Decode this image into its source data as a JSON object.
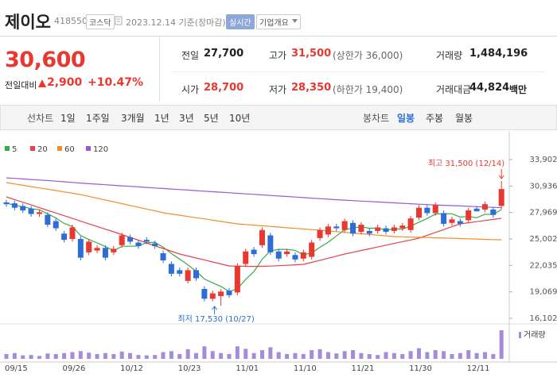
{
  "header": {
    "name": "제이오",
    "code": "418550",
    "market": "코스닥",
    "date": "2023.12.14 기준(장마감)",
    "realtime": "실시간",
    "company": "기업개요"
  },
  "quote": {
    "price": "30,600",
    "change_label": "전일대비",
    "change": "2,900",
    "change_rate": "+10.47%"
  },
  "stats": [
    [
      {
        "label": "전일",
        "value": "27,700"
      },
      {
        "label": "고가",
        "value": "31,500",
        "sub": "(상한가 36,000)"
      },
      {
        "label": "거래량",
        "value": "1,484,196"
      }
    ],
    [
      {
        "label": "시가",
        "value": "28,700"
      },
      {
        "label": "저가",
        "value": "28,350",
        "sub": "(하한가 19,400)"
      },
      {
        "label": "거래대금",
        "value": "44,824",
        "unit": "백만"
      }
    ]
  ],
  "toolbar": {
    "line_chart": "선차트",
    "periods": [
      "1일",
      "1주일",
      "3개월",
      "1년",
      "3년",
      "5년",
      "10년"
    ],
    "candle_chart": "봉차트",
    "candle_periods": [
      "일봉",
      "주봉",
      "월봉"
    ]
  },
  "chart_data": {
    "type": "candlestick",
    "x": [
      null,
      "09/15",
      null,
      null,
      null,
      null,
      null,
      null,
      "09/26",
      null,
      null,
      null,
      null,
      null,
      null,
      "10/12",
      null,
      null,
      null,
      null,
      null,
      null,
      "10/23",
      null,
      null,
      null,
      null,
      null,
      null,
      "11/01",
      null,
      null,
      null,
      null,
      null,
      null,
      "11/10",
      null,
      null,
      null,
      null,
      null,
      null,
      "11/21",
      null,
      null,
      null,
      null,
      null,
      null,
      "11/30",
      null,
      null,
      null,
      null,
      null,
      null,
      "12/11",
      null,
      null,
      null
    ],
    "open": [
      29100,
      29000,
      28700,
      28400,
      27800,
      27700,
      27000,
      25600,
      25000,
      25000,
      23500,
      23700,
      24000,
      23500,
      24300,
      25200,
      24600,
      24900,
      24500,
      23400,
      22200,
      21500,
      20300,
      21500,
      19400,
      18300,
      18600,
      19200,
      19000,
      22200,
      23800,
      24300,
      25400,
      23600,
      23300,
      23200,
      22800,
      23000,
      25100,
      25500,
      26400,
      26000,
      26800,
      25800,
      25900,
      25900,
      26200,
      25900,
      26200,
      26000,
      27400,
      28500,
      27900,
      27900,
      26800,
      27000,
      27100,
      28400,
      28300,
      28300,
      28700
    ],
    "high": [
      29400,
      29300,
      29000,
      28700,
      28300,
      28000,
      27300,
      25900,
      26600,
      25300,
      25000,
      24300,
      24300,
      24200,
      25700,
      25500,
      24900,
      25200,
      24800,
      23700,
      22500,
      21800,
      21800,
      21800,
      19700,
      19200,
      19400,
      19500,
      22300,
      23900,
      24100,
      26300,
      25700,
      23900,
      23900,
      23500,
      23800,
      24900,
      26300,
      26700,
      26700,
      27300,
      27100,
      26900,
      26200,
      26600,
      26500,
      26600,
      26800,
      27600,
      28800,
      28800,
      29100,
      28200,
      27500,
      27300,
      28500,
      28700,
      29200,
      28600,
      31500
    ],
    "low": [
      28600,
      28200,
      27900,
      27500,
      27500,
      26300,
      25900,
      24600,
      24700,
      22600,
      23200,
      23400,
      22600,
      23200,
      24000,
      24400,
      23900,
      24400,
      23900,
      22300,
      20800,
      20800,
      20000,
      20300,
      18000,
      18000,
      17530,
      18400,
      18700,
      21900,
      23000,
      24000,
      23200,
      22500,
      23000,
      22400,
      22500,
      22700,
      24800,
      25200,
      25900,
      25700,
      25300,
      25500,
      25300,
      25600,
      25500,
      25600,
      25900,
      25700,
      27100,
      27600,
      27600,
      26400,
      26500,
      26400,
      26800,
      28100,
      28000,
      27400,
      28350
    ],
    "close": [
      28900,
      28500,
      28200,
      27800,
      28000,
      26600,
      26200,
      24900,
      26300,
      22900,
      24700,
      24000,
      22900,
      23900,
      25400,
      24700,
      24200,
      24700,
      24200,
      22600,
      21100,
      21100,
      21500,
      20600,
      18300,
      18900,
      19100,
      18700,
      22000,
      23600,
      23300,
      26000,
      23500,
      22800,
      23600,
      22700,
      23500,
      24600,
      26000,
      26400,
      26200,
      27000,
      25600,
      26600,
      25600,
      26300,
      25800,
      26300,
      26500,
      27300,
      28500,
      27900,
      28800,
      26700,
      27200,
      26700,
      28200,
      28100,
      28900,
      27700,
      30600
    ],
    "up_color": "#e8382f",
    "down_color": "#2c6ed6",
    "series": [
      {
        "name": "5",
        "color": "#3aa84a",
        "values": [
          29000,
          28800,
          28600,
          28400,
          28280,
          27820,
          27360,
          26740,
          26400,
          25380,
          24940,
          24560,
          24160,
          23680,
          24180,
          24180,
          24220,
          24580,
          24640,
          24080,
          23360,
          22740,
          22100,
          21380,
          20520,
          20080,
          19680,
          19120,
          19400,
          20460,
          21340,
          22720,
          23680,
          23840,
          23840,
          23720,
          23220,
          23440,
          24080,
          24640,
          25340,
          26040,
          26240,
          26360,
          26200,
          26220,
          25980,
          26120,
          26100,
          26440,
          26880,
          27300,
          27800,
          27840,
          27820,
          27460,
          27520,
          27380,
          27780,
          27740,
          28300
        ]
      },
      {
        "name": "20",
        "color": "#e6424b",
        "values": [
          29720,
          29420,
          29120,
          28820,
          28510,
          28210,
          27910,
          27610,
          27310,
          27000,
          26700,
          26400,
          26100,
          25800,
          25490,
          25180,
          24870,
          24560,
          24240,
          23930,
          23620,
          23310,
          23090,
          22870,
          22650,
          22420,
          22200,
          21980,
          21950,
          21930,
          21920,
          21930,
          21960,
          22000,
          22050,
          22100,
          22150,
          22380,
          22610,
          22840,
          23070,
          23310,
          23510,
          23710,
          23900,
          24100,
          24300,
          24500,
          24700,
          24890,
          25090,
          25410,
          25730,
          26050,
          26370,
          26690,
          26820,
          26940,
          27070,
          27190,
          27320
        ]
      },
      {
        "name": "60",
        "color": "#f28c28",
        "values": [
          31320,
          31170,
          31020,
          30870,
          30720,
          30580,
          30430,
          30280,
          30130,
          29980,
          29780,
          29570,
          29370,
          29170,
          28960,
          28760,
          28550,
          28350,
          28150,
          27940,
          27800,
          27660,
          27520,
          27380,
          27250,
          27110,
          26970,
          26830,
          26690,
          26620,
          26550,
          26480,
          26410,
          26340,
          26260,
          26190,
          26120,
          26050,
          25980,
          25900,
          25820,
          25740,
          25660,
          25590,
          25510,
          25430,
          25350,
          25270,
          25240,
          25210,
          25190,
          25160,
          25130,
          25100,
          25070,
          25050,
          25020,
          24990,
          24960,
          24930,
          24910
        ]
      },
      {
        "name": "120",
        "color": "#9b59d0",
        "values": [
          31850,
          31790,
          31730,
          31670,
          31610,
          31550,
          31480,
          31410,
          31340,
          31270,
          31200,
          31140,
          31080,
          31020,
          30960,
          30900,
          30840,
          30780,
          30720,
          30660,
          30600,
          30540,
          30480,
          30420,
          30360,
          30300,
          30240,
          30180,
          30120,
          30060,
          30000,
          29940,
          29880,
          29820,
          29760,
          29700,
          29640,
          29580,
          29520,
          29460,
          29400,
          29350,
          29300,
          29250,
          29200,
          29150,
          29100,
          29050,
          29000,
          28950,
          28900,
          28860,
          28820,
          28780,
          28740,
          28700,
          28660,
          28620,
          28580,
          28540,
          28500
        ]
      }
    ],
    "volume": {
      "name": "거래량",
      "color": "#a68bd8",
      "values": [
        250000,
        300000,
        180000,
        200000,
        150000,
        280000,
        250000,
        300000,
        350000,
        400000,
        320000,
        250000,
        300000,
        250000,
        380000,
        300000,
        200000,
        180000,
        200000,
        350000,
        400000,
        250000,
        500000,
        300000,
        650000,
        400000,
        300000,
        250000,
        650000,
        520000,
        300000,
        450000,
        600000,
        350000,
        250000,
        300000,
        250000,
        450000,
        500000,
        350000,
        280000,
        400000,
        450000,
        300000,
        250000,
        200000,
        350000,
        300000,
        250000,
        400000,
        550000,
        350000,
        450000,
        400000,
        250000,
        300000,
        450000,
        300000,
        350000,
        250000,
        1484196
      ]
    },
    "ylim": [
      16102,
      33902
    ],
    "yticks": [
      {
        "value": 33902,
        "label": "33,902"
      },
      {
        "value": 30936,
        "label": "30,936"
      },
      {
        "value": 27969,
        "label": "27,969"
      },
      {
        "value": 25002,
        "label": "25,002"
      },
      {
        "value": 22035,
        "label": "22,035"
      },
      {
        "value": 19069,
        "label": "19,069"
      },
      {
        "value": 16102,
        "label": "16,102"
      }
    ],
    "grid": false,
    "annotations": [
      {
        "text": "최고 31,500 (12/14)",
        "index": 60,
        "value": 31500,
        "color": "#e8382f"
      },
      {
        "text": "최저 17,530 (10/27)",
        "index": 26,
        "value": 17530,
        "color": "#2c6ed6"
      }
    ]
  }
}
